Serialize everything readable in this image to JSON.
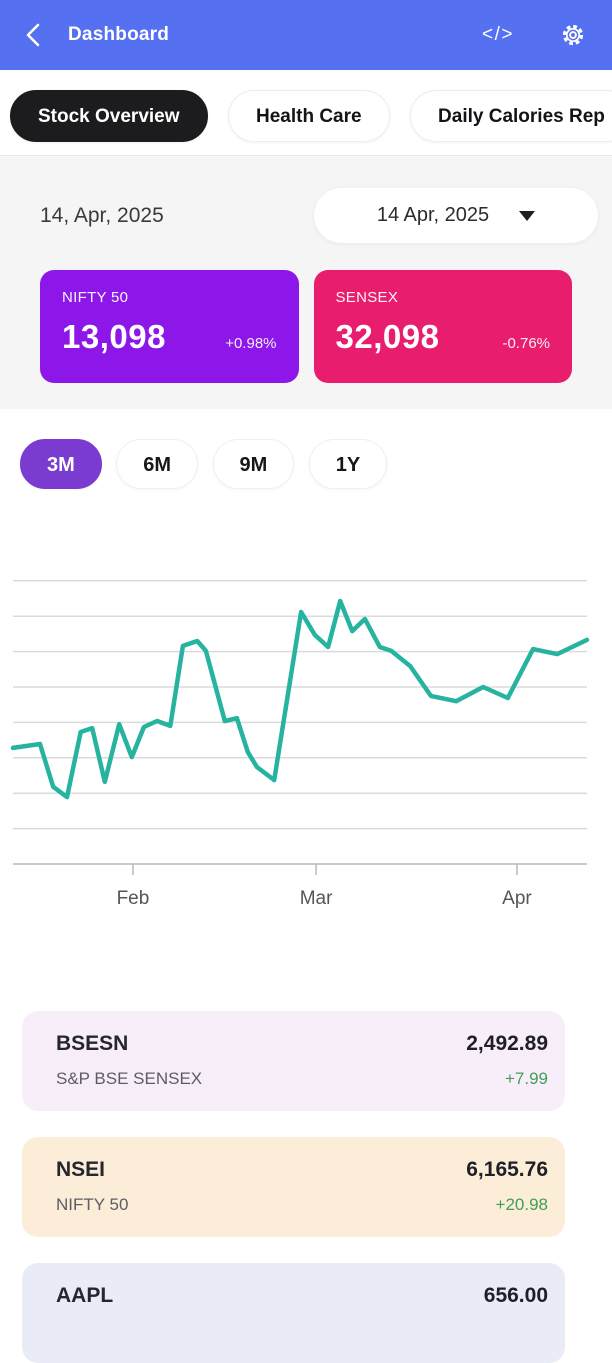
{
  "header": {
    "title": "Dashboard",
    "code_icon_glyph": "</>"
  },
  "category_tabs": [
    {
      "label": "Stock Overview",
      "selected": true
    },
    {
      "label": "Health Care",
      "selected": false
    },
    {
      "label": "Daily Calories Rep",
      "selected": false
    }
  ],
  "date_section": {
    "date_label": "14, Apr, 2025",
    "picker_value": "14 Apr, 2025"
  },
  "index_cards": [
    {
      "name": "NIFTY 50",
      "value": "13,098",
      "change": "+0.98%",
      "color": "#8D17E8"
    },
    {
      "name": "SENSEX",
      "value": "32,098",
      "change": "-0.76%",
      "color": "#E81D6D"
    }
  ],
  "range_tabs": [
    {
      "label": "3M",
      "selected": true
    },
    {
      "label": "6M",
      "selected": false
    },
    {
      "label": "9M",
      "selected": false
    },
    {
      "label": "1Y",
      "selected": false
    }
  ],
  "chart_data": {
    "type": "line",
    "title": "",
    "xlabel": "",
    "ylabel": "",
    "grid": "horizontal",
    "gridline_count": 8,
    "legend": "none",
    "value_scale_note": "no y-axis labels shown; v is in gridline units, axis baseline = 0, one gridline = 1 unit",
    "x_ticks": [
      {
        "label": "Feb",
        "x": 0.209
      },
      {
        "label": "Mar",
        "x": 0.528
      },
      {
        "label": "Apr",
        "x": 0.878
      }
    ],
    "series": [
      {
        "name": "stock-price",
        "color": "#26B3A0",
        "points": [
          {
            "x": 0.0,
            "v": 3.28
          },
          {
            "x": 0.047,
            "v": 3.39
          },
          {
            "x": 0.07,
            "v": 2.18
          },
          {
            "x": 0.094,
            "v": 1.89
          },
          {
            "x": 0.118,
            "v": 3.73
          },
          {
            "x": 0.138,
            "v": 3.84
          },
          {
            "x": 0.16,
            "v": 2.32
          },
          {
            "x": 0.185,
            "v": 3.95
          },
          {
            "x": 0.207,
            "v": 3.02
          },
          {
            "x": 0.228,
            "v": 3.87
          },
          {
            "x": 0.251,
            "v": 4.04
          },
          {
            "x": 0.274,
            "v": 3.9
          },
          {
            "x": 0.296,
            "v": 6.16
          },
          {
            "x": 0.321,
            "v": 6.3
          },
          {
            "x": 0.336,
            "v": 6.02
          },
          {
            "x": 0.369,
            "v": 4.04
          },
          {
            "x": 0.39,
            "v": 4.12
          },
          {
            "x": 0.409,
            "v": 3.16
          },
          {
            "x": 0.425,
            "v": 2.74
          },
          {
            "x": 0.455,
            "v": 2.37
          },
          {
            "x": 0.502,
            "v": 7.12
          },
          {
            "x": 0.526,
            "v": 6.47
          },
          {
            "x": 0.549,
            "v": 6.13
          },
          {
            "x": 0.57,
            "v": 7.43
          },
          {
            "x": 0.591,
            "v": 6.58
          },
          {
            "x": 0.613,
            "v": 6.92
          },
          {
            "x": 0.639,
            "v": 6.13
          },
          {
            "x": 0.659,
            "v": 6.02
          },
          {
            "x": 0.692,
            "v": 5.59
          },
          {
            "x": 0.728,
            "v": 4.75
          },
          {
            "x": 0.772,
            "v": 4.6
          },
          {
            "x": 0.819,
            "v": 5.0
          },
          {
            "x": 0.862,
            "v": 4.69
          },
          {
            "x": 0.906,
            "v": 6.07
          },
          {
            "x": 0.948,
            "v": 5.93
          },
          {
            "x": 1.0,
            "v": 6.33
          }
        ]
      }
    ]
  },
  "watchlist": [
    {
      "symbol": "BSESN",
      "name": "S&P BSE SENSEX",
      "price": "2,492.89",
      "change": "+7.99",
      "bg": "#F8EEFA"
    },
    {
      "symbol": "NSEI",
      "name": "NIFTY 50",
      "price": "6,165.76",
      "change": "+20.98",
      "bg": "#FCEDD8"
    },
    {
      "symbol": "AAPL",
      "price": "656.00",
      "bg": "#E9EBF7"
    }
  ],
  "colors": {
    "header_bg": "#5570F0",
    "selected_tab_bg": "#1C1C1E",
    "selected_range_bg": "#7A3CD0",
    "line_color": "#26B3A0",
    "gridline": "#DBDBDB",
    "axis": "#B9B9B9",
    "positive_change": "#3F9E56"
  }
}
